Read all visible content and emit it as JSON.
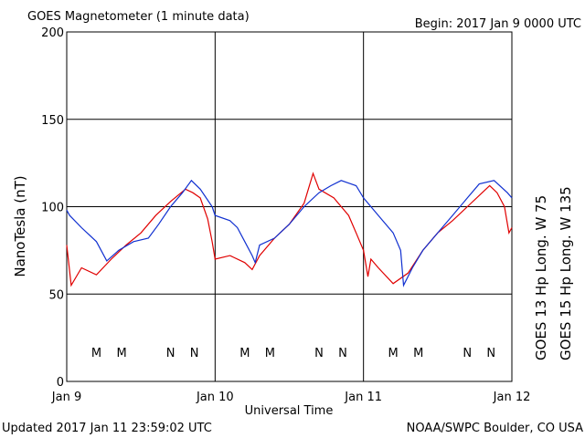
{
  "chart_data": {
    "type": "line",
    "title": "GOES Magnetometer (1 minute data)",
    "subtitle": "Begin:  2017 Jan 9 0000 UTC",
    "y_label": "NanoTesla (nT)",
    "x_label": "Universal Time",
    "footer_left": "Updated 2017 Jan 11 23:59:02 UTC",
    "footer_right": "NOAA/SWPC Boulder, CO USA",
    "xlim": [
      0,
      3
    ],
    "xticks": [
      {
        "value": 0,
        "label": "Jan 9"
      },
      {
        "value": 1,
        "label": "Jan 10"
      },
      {
        "value": 2,
        "label": "Jan 11"
      },
      {
        "value": 3,
        "label": "Jan 12"
      }
    ],
    "ylim": [
      0,
      200
    ],
    "yticks": [
      0,
      50,
      100,
      150,
      200
    ],
    "grid": true,
    "series": [
      {
        "name": "GOES 13 Hp  Long. W 75",
        "color": "#e00000",
        "x": [
          0,
          0.03,
          0.1,
          0.2,
          0.3,
          0.4,
          0.5,
          0.6,
          0.7,
          0.8,
          0.85,
          0.9,
          0.95,
          0.98,
          1.0,
          1.1,
          1.2,
          1.25,
          1.3,
          1.4,
          1.5,
          1.6,
          1.66,
          1.7,
          1.8,
          1.85,
          1.9,
          1.95,
          2.0,
          2.03,
          2.05,
          2.1,
          2.2,
          2.3,
          2.4,
          2.5,
          2.6,
          2.7,
          2.8,
          2.85,
          2.9,
          2.95,
          2.98,
          3.0
        ],
        "values": [
          78,
          55,
          65,
          61,
          70,
          78,
          85,
          95,
          103,
          110,
          108,
          105,
          93,
          80,
          70,
          72,
          68,
          64,
          72,
          82,
          90,
          102,
          119,
          110,
          105,
          100,
          95,
          85,
          75,
          60,
          70,
          65,
          56,
          62,
          75,
          85,
          92,
          100,
          108,
          112,
          108,
          100,
          85,
          88
        ]
      },
      {
        "name": "GOES 15 Hp  Long. W 135",
        "color": "#1030d0",
        "x": [
          0,
          0.02,
          0.1,
          0.2,
          0.27,
          0.35,
          0.45,
          0.55,
          0.62,
          0.7,
          0.78,
          0.84,
          0.9,
          0.98,
          1.0,
          1.1,
          1.15,
          1.2,
          1.25,
          1.27,
          1.3,
          1.4,
          1.5,
          1.6,
          1.7,
          1.78,
          1.85,
          1.95,
          2.0,
          2.1,
          2.2,
          2.25,
          2.27,
          2.33,
          2.4,
          2.5,
          2.6,
          2.7,
          2.78,
          2.88,
          2.97,
          3.0
        ],
        "values": [
          98,
          95,
          88,
          80,
          69,
          75,
          80,
          82,
          90,
          100,
          108,
          115,
          110,
          100,
          95,
          92,
          88,
          80,
          72,
          68,
          78,
          82,
          90,
          100,
          108,
          112,
          115,
          112,
          105,
          95,
          85,
          75,
          55,
          65,
          75,
          85,
          95,
          105,
          113,
          115,
          108,
          105
        ]
      }
    ],
    "annotations": [
      {
        "text": "M",
        "x": 0.2,
        "series": 0
      },
      {
        "text": "M",
        "x": 0.37,
        "series": 1
      },
      {
        "text": "N",
        "x": 0.7,
        "series": 0
      },
      {
        "text": "N",
        "x": 0.86,
        "series": 1
      },
      {
        "text": "M",
        "x": 1.2,
        "series": 0
      },
      {
        "text": "M",
        "x": 1.37,
        "series": 1
      },
      {
        "text": "N",
        "x": 1.7,
        "series": 0
      },
      {
        "text": "N",
        "x": 1.86,
        "series": 1
      },
      {
        "text": "M",
        "x": 2.2,
        "series": 0
      },
      {
        "text": "M",
        "x": 2.37,
        "series": 1
      },
      {
        "text": "N",
        "x": 2.7,
        "series": 0
      },
      {
        "text": "N",
        "x": 2.86,
        "series": 1
      }
    ]
  }
}
